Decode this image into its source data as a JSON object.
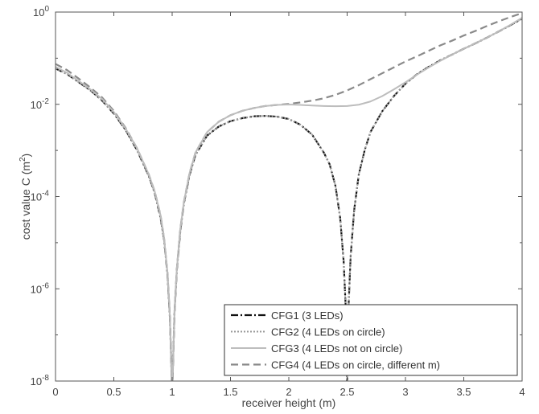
{
  "chart_data": {
    "type": "line",
    "xlabel": "receiver height (m)",
    "ylabel": "cost value C (m",
    "ylabel_sup": "2",
    "ylabel_end": ")",
    "xlim": [
      0,
      4
    ],
    "ylim_exp": [
      -8,
      0
    ],
    "yscale": "log",
    "x_ticks": [
      {
        "v": 0,
        "label": "0"
      },
      {
        "v": 0.5,
        "label": "0.5"
      },
      {
        "v": 1,
        "label": "1"
      },
      {
        "v": 1.5,
        "label": "1.5"
      },
      {
        "v": 2,
        "label": "2"
      },
      {
        "v": 2.5,
        "label": "2.5"
      },
      {
        "v": 3,
        "label": "3"
      },
      {
        "v": 3.5,
        "label": "3.5"
      },
      {
        "v": 4,
        "label": "4"
      }
    ],
    "y_ticks": [
      {
        "exp": 0,
        "base": "10",
        "sup": "0"
      },
      {
        "exp": -2,
        "base": "10",
        "sup": "-2"
      },
      {
        "exp": -4,
        "base": "10",
        "sup": "-4"
      },
      {
        "exp": -6,
        "base": "10",
        "sup": "-6"
      },
      {
        "exp": -8,
        "base": "10",
        "sup": "-8"
      }
    ],
    "grid": false,
    "legend_position": "bottom-right",
    "series": [
      {
        "name": "CFG1 (3 LEDs)",
        "color": "#111111",
        "dash": "9,3,2,3",
        "width": 2.2,
        "x": [
          0,
          0.1,
          0.2,
          0.3,
          0.4,
          0.5,
          0.6,
          0.7,
          0.8,
          0.85,
          0.9,
          0.93,
          0.96,
          0.98,
          0.99,
          1.0,
          1.01,
          1.02,
          1.04,
          1.07,
          1.1,
          1.15,
          1.2,
          1.3,
          1.4,
          1.5,
          1.6,
          1.7,
          1.8,
          1.9,
          2.0,
          2.1,
          2.2,
          2.3,
          2.35,
          2.4,
          2.44,
          2.47,
          2.49,
          2.5,
          2.51,
          2.53,
          2.56,
          2.6,
          2.65,
          2.7,
          2.8,
          2.9,
          3.0,
          3.1,
          3.2,
          3.3,
          3.4,
          3.5,
          3.6,
          3.7,
          3.8,
          3.9,
          4.0
        ],
        "y": [
          0.06,
          0.045,
          0.03,
          0.02,
          0.012,
          0.0063,
          0.0028,
          0.001,
          0.00028,
          0.00012,
          3.5e-05,
          1.2e-05,
          2e-06,
          2.5e-07,
          4e-08,
          5e-09,
          4e-08,
          3e-07,
          2.5e-06,
          1.8e-05,
          7e-05,
          0.0003,
          0.0008,
          0.0021,
          0.0033,
          0.0043,
          0.005,
          0.0055,
          0.0056,
          0.0054,
          0.0048,
          0.0036,
          0.0022,
          0.0009,
          0.0005,
          0.00017,
          3.5e-05,
          4e-06,
          3e-07,
          6e-09,
          3e-07,
          5e-06,
          5e-05,
          0.0003,
          0.001,
          0.0025,
          0.007,
          0.015,
          0.028,
          0.045,
          0.065,
          0.09,
          0.12,
          0.16,
          0.21,
          0.28,
          0.38,
          0.52,
          0.72
        ]
      },
      {
        "name": "CFG2 (4 LEDs on circle)",
        "color": "#9a9a9a",
        "dash": "2,2",
        "width": 2.0,
        "x": [
          0,
          0.1,
          0.2,
          0.3,
          0.4,
          0.5,
          0.6,
          0.7,
          0.8,
          0.85,
          0.9,
          0.93,
          0.96,
          0.98,
          0.99,
          1.0,
          1.01,
          1.02,
          1.04,
          1.07,
          1.1,
          1.15,
          1.2,
          1.3,
          1.4,
          1.5,
          1.6,
          1.7,
          1.8,
          1.9,
          2.0,
          2.1,
          2.2,
          2.3,
          2.35,
          2.4,
          2.44,
          2.47,
          2.49,
          2.5,
          2.51,
          2.53,
          2.56,
          2.6,
          2.65,
          2.7,
          2.8,
          2.9,
          3.0,
          3.1,
          3.2,
          3.3,
          3.4,
          3.5,
          3.6,
          3.7,
          3.8,
          3.9,
          4.0
        ],
        "y": [
          0.06,
          0.045,
          0.03,
          0.02,
          0.012,
          0.0063,
          0.0028,
          0.001,
          0.00028,
          0.00012,
          3.5e-05,
          1.2e-05,
          2e-06,
          2.5e-07,
          4e-08,
          5e-09,
          4e-08,
          3e-07,
          2.5e-06,
          1.8e-05,
          7e-05,
          0.0003,
          0.0008,
          0.0021,
          0.0033,
          0.0043,
          0.005,
          0.0055,
          0.0056,
          0.0054,
          0.0048,
          0.0036,
          0.0022,
          0.0009,
          0.0005,
          0.00017,
          3.5e-05,
          4e-06,
          3e-07,
          6e-09,
          3e-07,
          5e-06,
          5e-05,
          0.0003,
          0.001,
          0.0025,
          0.007,
          0.015,
          0.028,
          0.045,
          0.065,
          0.09,
          0.12,
          0.16,
          0.21,
          0.28,
          0.38,
          0.52,
          0.72
        ]
      },
      {
        "name": "CFG3 (4 LEDs not on circle)",
        "color": "#bdbdbd",
        "dash": "",
        "width": 2.0,
        "x": [
          0,
          0.1,
          0.2,
          0.3,
          0.4,
          0.5,
          0.6,
          0.7,
          0.8,
          0.85,
          0.9,
          0.93,
          0.96,
          0.98,
          0.99,
          1.0,
          1.01,
          1.02,
          1.04,
          1.07,
          1.1,
          1.15,
          1.2,
          1.3,
          1.4,
          1.5,
          1.6,
          1.7,
          1.8,
          1.9,
          2.0,
          2.1,
          2.2,
          2.3,
          2.4,
          2.5,
          2.6,
          2.7,
          2.8,
          2.9,
          3.0,
          3.1,
          3.2,
          3.3,
          3.4,
          3.5,
          3.6,
          3.7,
          3.8,
          3.9,
          4.0
        ],
        "y": [
          0.065,
          0.048,
          0.032,
          0.021,
          0.013,
          0.0068,
          0.003,
          0.0011,
          0.0003,
          0.00013,
          4e-05,
          1.3e-05,
          2.2e-06,
          2.7e-07,
          4e-08,
          5e-09,
          4e-08,
          3e-07,
          2.7e-06,
          2e-05,
          7.5e-05,
          0.00033,
          0.0009,
          0.0025,
          0.0042,
          0.0058,
          0.0072,
          0.0083,
          0.0092,
          0.0097,
          0.0099,
          0.0097,
          0.0094,
          0.0092,
          0.0091,
          0.0092,
          0.0098,
          0.0115,
          0.015,
          0.021,
          0.03,
          0.044,
          0.063,
          0.088,
          0.12,
          0.16,
          0.21,
          0.28,
          0.38,
          0.53,
          0.75
        ]
      },
      {
        "name": "CFG4 (4 LEDs on circle, different m)",
        "color": "#8a8a8a",
        "dash": "9,5",
        "width": 2.2,
        "x": [
          0,
          0.1,
          0.2,
          0.3,
          0.4,
          0.5,
          0.6,
          0.7,
          0.8,
          0.85,
          0.9,
          0.93,
          0.96,
          0.98,
          0.99,
          1.0,
          1.01,
          1.02,
          1.04,
          1.07,
          1.1,
          1.15,
          1.2,
          1.3,
          1.4,
          1.5,
          1.6,
          1.7,
          1.8,
          1.9,
          2.0,
          2.1,
          2.2,
          2.3,
          2.4,
          2.5,
          2.6,
          2.7,
          2.8,
          2.9,
          3.0,
          3.1,
          3.2,
          3.3,
          3.4,
          3.5,
          3.6,
          3.7,
          3.8,
          3.9,
          4.0
        ],
        "y": [
          0.075,
          0.055,
          0.036,
          0.023,
          0.014,
          0.0072,
          0.0031,
          0.0011,
          0.0003,
          0.00013,
          4e-05,
          1.3e-05,
          2.2e-06,
          2.7e-07,
          4e-08,
          5e-09,
          4e-08,
          3e-07,
          2.7e-06,
          2e-05,
          7.5e-05,
          0.00033,
          0.0009,
          0.0025,
          0.0042,
          0.0058,
          0.0072,
          0.0083,
          0.0092,
          0.0097,
          0.0102,
          0.011,
          0.012,
          0.0135,
          0.016,
          0.02,
          0.026,
          0.035,
          0.047,
          0.063,
          0.085,
          0.11,
          0.145,
          0.19,
          0.24,
          0.31,
          0.39,
          0.5,
          0.63,
          0.78,
          0.95
        ]
      }
    ]
  }
}
